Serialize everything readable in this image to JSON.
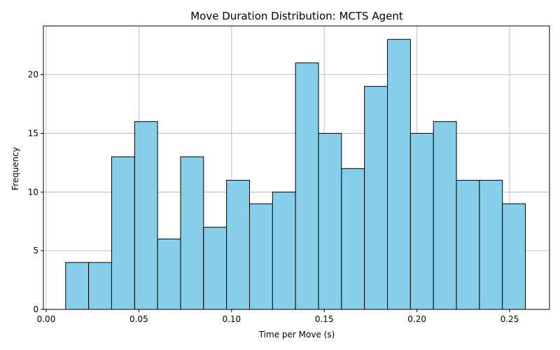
{
  "chart_data": {
    "type": "bar",
    "title": "Move Duration Distribution: MCTS Agent",
    "xlabel": "Time per Move (s)",
    "ylabel": "Frequency",
    "xlim": [
      -0.0015,
      0.2715
    ],
    "ylim": [
      0,
      24.15
    ],
    "grid": true,
    "bar_color": "#87CEEB",
    "edge_color": "#000000",
    "bin_edges": [
      0.0105,
      0.0229,
      0.0353,
      0.0477,
      0.0601,
      0.0725,
      0.0849,
      0.0973,
      0.1097,
      0.1221,
      0.1345,
      0.1469,
      0.1593,
      0.1717,
      0.1841,
      0.1965,
      0.2089,
      0.2213,
      0.2337,
      0.2461,
      0.2585
    ],
    "values": [
      4,
      4,
      13,
      16,
      6,
      13,
      7,
      11,
      9,
      10,
      21,
      15,
      12,
      19,
      23,
      15,
      16,
      11,
      11,
      9
    ],
    "xticks": [
      0.0,
      0.05,
      0.1,
      0.15,
      0.2,
      0.25
    ],
    "xtick_labels": [
      "0.00",
      "0.05",
      "0.10",
      "0.15",
      "0.20",
      "0.25"
    ],
    "yticks": [
      0,
      5,
      10,
      15,
      20
    ],
    "ytick_labels": [
      "0",
      "5",
      "10",
      "15",
      "20"
    ]
  }
}
